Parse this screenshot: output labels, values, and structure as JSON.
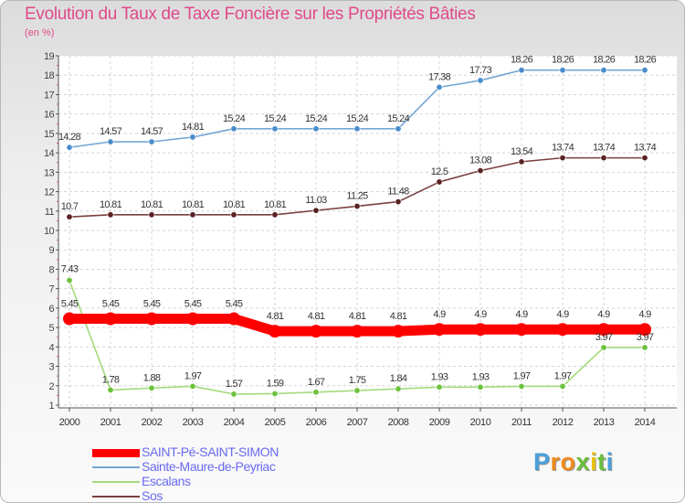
{
  "chart_data": {
    "type": "line",
    "title": "Evolution du Taux de Taxe Foncière sur les Propriétés Bâties",
    "ylabel": "(en %)",
    "xlabel": "",
    "ylim": [
      1,
      19
    ],
    "yticks": [
      1,
      2,
      3,
      4,
      5,
      6,
      7,
      8,
      9,
      10,
      11,
      12,
      13,
      14,
      15,
      16,
      17,
      18,
      19
    ],
    "categories": [
      "2000",
      "2001",
      "2002",
      "2003",
      "2004",
      "2005",
      "2006",
      "2007",
      "2008",
      "2009",
      "2010",
      "2011",
      "2012",
      "2013",
      "2014"
    ],
    "grid": true,
    "legend_position": "bottom-left",
    "series": [
      {
        "name": "SAINT-Pé-SAINT-SIMON",
        "color": "#ff0000",
        "emphasis": "thick",
        "values": [
          5.45,
          5.45,
          5.45,
          5.45,
          5.45,
          4.81,
          4.81,
          4.81,
          4.81,
          4.9,
          4.9,
          4.9,
          4.9,
          4.9,
          4.9
        ],
        "labels": [
          "5.45",
          "5.45",
          "5.45",
          "5.45",
          "5.45",
          "4.81",
          "4.81",
          "4.81",
          "4.81",
          "4.9",
          "4.9",
          "4.9",
          "4.9",
          "4.9",
          "4.9"
        ]
      },
      {
        "name": "Sainte-Maure-de-Peyriac",
        "color": "#75a7d4",
        "marker": "#4a8ccc",
        "values": [
          14.28,
          14.57,
          14.57,
          14.81,
          15.24,
          15.24,
          15.24,
          15.24,
          15.24,
          17.38,
          17.73,
          18.26,
          18.26,
          18.26,
          18.26
        ],
        "labels": [
          "14.28",
          "14.57",
          "14.57",
          "14.81",
          "15.24",
          "15.24",
          "15.24",
          "15.24",
          "15.24",
          "17.38",
          "17.73",
          "18.26",
          "18.26",
          "18.26",
          "18.26"
        ]
      },
      {
        "name": "Escalans",
        "color": "#a4da7c",
        "marker": "#6cc23c",
        "values": [
          7.43,
          1.78,
          1.88,
          1.97,
          1.57,
          1.59,
          1.67,
          1.75,
          1.84,
          1.93,
          1.93,
          1.97,
          1.97,
          3.97,
          3.97
        ],
        "labels": [
          "7.43",
          "1.78",
          "1.88",
          "1.97",
          "1.57",
          "1.59",
          "1.67",
          "1.75",
          "1.84",
          "1.93",
          "1.93",
          "1.97",
          "1.97",
          "3.97",
          "3.97"
        ]
      },
      {
        "name": "Sos",
        "color": "#7a3f3f",
        "marker": "#5a2222",
        "values": [
          10.7,
          10.81,
          10.81,
          10.81,
          10.81,
          10.81,
          11.03,
          11.25,
          11.48,
          12.5,
          13.08,
          13.54,
          13.74,
          13.74,
          13.74
        ],
        "labels": [
          "10.7",
          "10.81",
          "10.81",
          "10.81",
          "10.81",
          "10.81",
          "11.03",
          "11.25",
          "11.48",
          "12.5",
          "13.08",
          "13.54",
          "13.74",
          "13.74",
          "13.74"
        ]
      }
    ]
  },
  "brand": {
    "letters": [
      "P",
      "r",
      "o",
      "x",
      "i",
      "t",
      "i"
    ],
    "colors": [
      "#4aa0dc",
      "#f08a1e",
      "#f08a1e",
      "#6abf3c",
      "#e8c20c",
      "#6abf3c",
      "#4aa0dc"
    ]
  }
}
